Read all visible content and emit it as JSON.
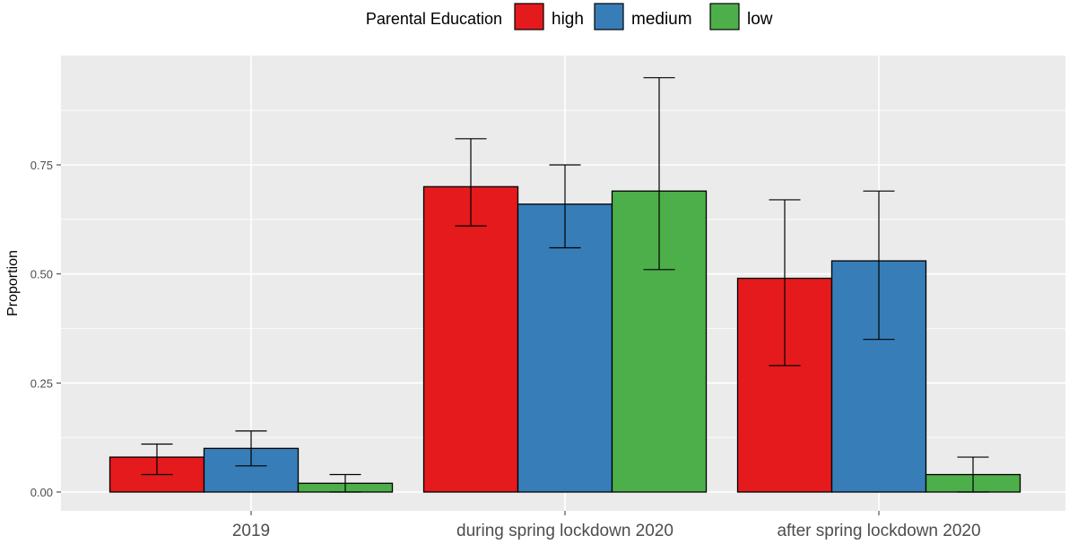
{
  "chart_data": {
    "type": "bar",
    "categories": [
      "2019",
      "during spring lockdown 2020",
      "after spring lockdown 2020"
    ],
    "legend_title": "Parental Education",
    "legend_position": "top",
    "ylabel": "Proportion",
    "xlabel": "",
    "ylim": [
      -0.05,
      1.0
    ],
    "yticks": [
      "0.00",
      "0.25",
      "0.50",
      "0.75"
    ],
    "ytick_values": [
      0,
      0.25,
      0.5,
      0.75
    ],
    "grid": true,
    "series": [
      {
        "name": "high",
        "color": "#e41a1c",
        "values": [
          0.08,
          0.7,
          0.49
        ],
        "err_low": [
          0.04,
          0.61,
          0.29
        ],
        "err_high": [
          0.11,
          0.81,
          0.67
        ]
      },
      {
        "name": "medium",
        "color": "#377eb8",
        "values": [
          0.1,
          0.66,
          0.53
        ],
        "err_low": [
          0.06,
          0.56,
          0.35
        ],
        "err_high": [
          0.14,
          0.75,
          0.69
        ]
      },
      {
        "name": "low",
        "color": "#4daf4a",
        "values": [
          0.02,
          0.69,
          0.04
        ],
        "err_low": [
          0.0,
          0.51,
          0.0
        ],
        "err_high": [
          0.04,
          0.95,
          0.08
        ]
      }
    ]
  }
}
